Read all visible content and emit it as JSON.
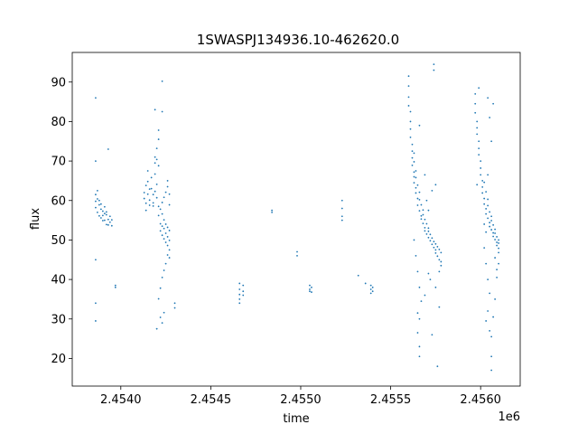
{
  "chart_data": {
    "type": "scatter",
    "title": "1SWASPJ134936.10-462620.0",
    "xlabel": "time",
    "ylabel": "flux",
    "x_offset_label": "1e6",
    "xlim": [
      2.45373,
      2.45622
    ],
    "ylim": [
      13,
      97.5
    ],
    "x_ticks": [
      2.454,
      2.4545,
      2.455,
      2.4555,
      2.456
    ],
    "x_tick_labels": [
      "2.4540",
      "2.4545",
      "2.4550",
      "2.4555",
      "2.4560"
    ],
    "y_ticks": [
      20,
      30,
      40,
      50,
      60,
      70,
      80,
      90
    ],
    "y_tick_labels": [
      "20",
      "30",
      "40",
      "50",
      "60",
      "70",
      "80",
      "90"
    ],
    "grid": false,
    "marker_color": "#1f77b4",
    "points": [
      [
        2.45386,
        61.5
      ],
      [
        2.45386,
        59.8
      ],
      [
        2.45386,
        58.2
      ],
      [
        2.45387,
        57.0
      ],
      [
        2.45387,
        62.5
      ],
      [
        2.45387,
        60.4
      ],
      [
        2.45388,
        58.9
      ],
      [
        2.45388,
        56.1
      ],
      [
        2.45388,
        60.0
      ],
      [
        2.45389,
        57.8
      ],
      [
        2.45389,
        55.6
      ],
      [
        2.45389,
        59.1
      ],
      [
        2.4539,
        57.3
      ],
      [
        2.4539,
        56.2
      ],
      [
        2.4539,
        54.9
      ],
      [
        2.45391,
        58.4
      ],
      [
        2.45391,
        56.7
      ],
      [
        2.45391,
        55.0
      ],
      [
        2.45392,
        57.1
      ],
      [
        2.45392,
        53.9
      ],
      [
        2.45392,
        56.4
      ],
      [
        2.45393,
        55.2
      ],
      [
        2.45393,
        53.8
      ],
      [
        2.45394,
        56.0
      ],
      [
        2.45394,
        54.5
      ],
      [
        2.45395,
        55.1
      ],
      [
        2.45395,
        53.6
      ],
      [
        2.45386,
        70.0
      ],
      [
        2.45386,
        86.0
      ],
      [
        2.45386,
        45.0
      ],
      [
        2.45386,
        34.0
      ],
      [
        2.45386,
        29.5
      ],
      [
        2.45393,
        73.0
      ],
      [
        2.45397,
        38.5
      ],
      [
        2.45397,
        38.0
      ],
      [
        2.45413,
        62.0
      ],
      [
        2.45413,
        60.5
      ],
      [
        2.45414,
        63.8
      ],
      [
        2.45414,
        59.3
      ],
      [
        2.45415,
        64.8
      ],
      [
        2.45415,
        61.6
      ],
      [
        2.45416,
        62.9
      ],
      [
        2.45416,
        60.1
      ],
      [
        2.45417,
        65.8
      ],
      [
        2.45417,
        63.0
      ],
      [
        2.45418,
        61.5
      ],
      [
        2.45418,
        59.4
      ],
      [
        2.45419,
        66.7
      ],
      [
        2.45419,
        62.3
      ],
      [
        2.4542,
        60.7
      ],
      [
        2.4542,
        64.1
      ],
      [
        2.45415,
        67.5
      ],
      [
        2.45414,
        57.5
      ],
      [
        2.45418,
        58.6
      ],
      [
        2.45416,
        58.8
      ],
      [
        2.45419,
        69.5
      ],
      [
        2.45419,
        71.0
      ],
      [
        2.4542,
        73.2
      ],
      [
        2.45421,
        75.5
      ],
      [
        2.45421,
        77.8
      ],
      [
        2.4542,
        70.4
      ],
      [
        2.45421,
        68.8
      ],
      [
        2.45421,
        58.5
      ],
      [
        2.45421,
        56.2
      ],
      [
        2.45422,
        57.8
      ],
      [
        2.45422,
        54.1
      ],
      [
        2.45422,
        52.3
      ],
      [
        2.45423,
        56.6
      ],
      [
        2.45423,
        51.2
      ],
      [
        2.45423,
        53.5
      ],
      [
        2.45424,
        55.1
      ],
      [
        2.45424,
        50.3
      ],
      [
        2.45424,
        52.9
      ],
      [
        2.45425,
        54.0
      ],
      [
        2.45425,
        49.4
      ],
      [
        2.45425,
        51.7
      ],
      [
        2.45426,
        53.2
      ],
      [
        2.45426,
        48.6
      ],
      [
        2.45426,
        50.8
      ],
      [
        2.45427,
        52.4
      ],
      [
        2.45427,
        47.5
      ],
      [
        2.45427,
        49.9
      ],
      [
        2.45423,
        59.5
      ],
      [
        2.45424,
        60.8
      ],
      [
        2.45425,
        62.1
      ],
      [
        2.45426,
        63.5
      ],
      [
        2.45426,
        65.0
      ],
      [
        2.45427,
        61.6
      ],
      [
        2.45427,
        58.9
      ],
      [
        2.45426,
        46.2
      ],
      [
        2.45427,
        45.5
      ],
      [
        2.45425,
        44.0
      ],
      [
        2.45424,
        42.3
      ],
      [
        2.45423,
        40.5
      ],
      [
        2.45422,
        37.8
      ],
      [
        2.45421,
        35.1
      ],
      [
        2.4542,
        27.5
      ],
      [
        2.45422,
        30.4
      ],
      [
        2.45423,
        29.0
      ],
      [
        2.45424,
        31.6
      ],
      [
        2.45423,
        90.2
      ],
      [
        2.45419,
        83.0
      ],
      [
        2.45423,
        82.5
      ],
      [
        2.4543,
        34.0
      ],
      [
        2.4543,
        32.8
      ],
      [
        2.45466,
        39.0
      ],
      [
        2.45466,
        37.5
      ],
      [
        2.45466,
        36.2
      ],
      [
        2.45466,
        35.0
      ],
      [
        2.45466,
        34.0
      ],
      [
        2.45468,
        38.5
      ],
      [
        2.45468,
        37.0
      ],
      [
        2.45468,
        36.0
      ],
      [
        2.45484,
        57.5
      ],
      [
        2.45484,
        57.0
      ],
      [
        2.45498,
        47.0
      ],
      [
        2.45498,
        46.0
      ],
      [
        2.45505,
        38.5
      ],
      [
        2.45505,
        37.5
      ],
      [
        2.45505,
        37.0
      ],
      [
        2.45506,
        38.0
      ],
      [
        2.45506,
        36.8
      ],
      [
        2.45523,
        60.0
      ],
      [
        2.45523,
        58.0
      ],
      [
        2.45523,
        56.0
      ],
      [
        2.45523,
        55.0
      ],
      [
        2.45532,
        41.0
      ],
      [
        2.45536,
        39.0
      ],
      [
        2.45539,
        38.5
      ],
      [
        2.45539,
        37.5
      ],
      [
        2.45539,
        36.5
      ],
      [
        2.4554,
        38.0
      ],
      [
        2.4554,
        37.0
      ],
      [
        2.4556,
        91.5
      ],
      [
        2.4556,
        89.0
      ],
      [
        2.4556,
        86.2
      ],
      [
        2.4556,
        84.0
      ],
      [
        2.45561,
        82.5
      ],
      [
        2.45561,
        80.0
      ],
      [
        2.45561,
        78.1
      ],
      [
        2.45561,
        76.0
      ],
      [
        2.45562,
        74.2
      ],
      [
        2.45562,
        72.5
      ],
      [
        2.45562,
        70.8
      ],
      [
        2.45562,
        68.9
      ],
      [
        2.45563,
        67.2
      ],
      [
        2.45563,
        66.0
      ],
      [
        2.45563,
        64.5
      ],
      [
        2.45563,
        69.8
      ],
      [
        2.45564,
        63.2
      ],
      [
        2.45564,
        65.8
      ],
      [
        2.45564,
        61.9
      ],
      [
        2.45564,
        67.5
      ],
      [
        2.45565,
        60.5
      ],
      [
        2.45565,
        63.9
      ],
      [
        2.45565,
        58.8
      ],
      [
        2.45566,
        62.1
      ],
      [
        2.45566,
        57.4
      ],
      [
        2.45566,
        60.2
      ],
      [
        2.45567,
        56.1
      ],
      [
        2.45567,
        58.9
      ],
      [
        2.45567,
        55.3
      ],
      [
        2.45568,
        57.6
      ],
      [
        2.45568,
        54.2
      ],
      [
        2.45568,
        56.4
      ],
      [
        2.45569,
        53.1
      ],
      [
        2.45569,
        55.2
      ],
      [
        2.45569,
        52.3
      ],
      [
        2.4557,
        54.1
      ],
      [
        2.4557,
        51.5
      ],
      [
        2.45571,
        53.0
      ],
      [
        2.45571,
        50.6
      ],
      [
        2.45571,
        52.2
      ],
      [
        2.45572,
        49.8
      ],
      [
        2.45572,
        51.4
      ],
      [
        2.45573,
        48.9
      ],
      [
        2.45573,
        50.5
      ],
      [
        2.45574,
        48.1
      ],
      [
        2.45574,
        49.6
      ],
      [
        2.45575,
        47.5
      ],
      [
        2.45575,
        49.0
      ],
      [
        2.45575,
        46.7
      ],
      [
        2.45576,
        48.3
      ],
      [
        2.45576,
        45.9
      ],
      [
        2.45577,
        47.6
      ],
      [
        2.45577,
        45.0
      ],
      [
        2.45578,
        46.8
      ],
      [
        2.45578,
        44.5
      ],
      [
        2.45571,
        57.5
      ],
      [
        2.4557,
        60.0
      ],
      [
        2.45573,
        62.5
      ],
      [
        2.45575,
        64.0
      ],
      [
        2.45569,
        66.5
      ],
      [
        2.45563,
        50.0
      ],
      [
        2.45564,
        46.0
      ],
      [
        2.45565,
        42.0
      ],
      [
        2.45566,
        38.0
      ],
      [
        2.45567,
        34.5
      ],
      [
        2.45566,
        30.0
      ],
      [
        2.45565,
        26.5
      ],
      [
        2.45566,
        23.0
      ],
      [
        2.45566,
        20.5
      ],
      [
        2.45565,
        31.5
      ],
      [
        2.45569,
        36.0
      ],
      [
        2.45572,
        40.0
      ],
      [
        2.45575,
        38.0
      ],
      [
        2.45577,
        33.0
      ],
      [
        2.45576,
        18.0
      ],
      [
        2.45573,
        26.0
      ],
      [
        2.45574,
        94.5
      ],
      [
        2.45574,
        93.0
      ],
      [
        2.45566,
        79.0
      ],
      [
        2.45563,
        72.0
      ],
      [
        2.45571,
        41.5
      ],
      [
        2.45577,
        42.0
      ],
      [
        2.45578,
        43.5
      ],
      [
        2.45597,
        87.0
      ],
      [
        2.45597,
        84.5
      ],
      [
        2.45597,
        82.2
      ],
      [
        2.45598,
        80.0
      ],
      [
        2.45598,
        78.4
      ],
      [
        2.45598,
        76.8
      ],
      [
        2.45599,
        75.0
      ],
      [
        2.45599,
        73.2
      ],
      [
        2.45599,
        71.6
      ],
      [
        2.456,
        70.0
      ],
      [
        2.456,
        68.2
      ],
      [
        2.456,
        66.5
      ],
      [
        2.45601,
        65.0
      ],
      [
        2.45601,
        63.4
      ],
      [
        2.45601,
        61.9
      ],
      [
        2.45602,
        60.5
      ],
      [
        2.45602,
        59.1
      ],
      [
        2.45602,
        64.6
      ],
      [
        2.45603,
        57.9
      ],
      [
        2.45603,
        62.2
      ],
      [
        2.45603,
        56.6
      ],
      [
        2.45604,
        60.3
      ],
      [
        2.45604,
        55.5
      ],
      [
        2.45604,
        58.7
      ],
      [
        2.45605,
        54.4
      ],
      [
        2.45605,
        57.1
      ],
      [
        2.45605,
        53.4
      ],
      [
        2.45606,
        56.0
      ],
      [
        2.45606,
        52.6
      ],
      [
        2.45606,
        54.9
      ],
      [
        2.45607,
        51.8
      ],
      [
        2.45607,
        53.8
      ],
      [
        2.45607,
        50.9
      ],
      [
        2.45608,
        52.7
      ],
      [
        2.45608,
        50.1
      ],
      [
        2.45608,
        51.7
      ],
      [
        2.45609,
        49.4
      ],
      [
        2.45609,
        50.8
      ],
      [
        2.45609,
        48.6
      ],
      [
        2.4561,
        50.0
      ],
      [
        2.4561,
        47.9
      ],
      [
        2.4561,
        49.2
      ],
      [
        2.4561,
        46.8
      ],
      [
        2.45604,
        66.5
      ],
      [
        2.45606,
        75.0
      ],
      [
        2.45603,
        52.0
      ],
      [
        2.45602,
        48.0
      ],
      [
        2.45603,
        44.0
      ],
      [
        2.45604,
        40.0
      ],
      [
        2.45605,
        36.5
      ],
      [
        2.45604,
        32.0
      ],
      [
        2.45603,
        29.5
      ],
      [
        2.45605,
        27.0
      ],
      [
        2.45606,
        25.5
      ],
      [
        2.45606,
        20.5
      ],
      [
        2.45607,
        30.5
      ],
      [
        2.45608,
        35.0
      ],
      [
        2.45609,
        40.5
      ],
      [
        2.4561,
        44.0
      ],
      [
        2.45606,
        17.0
      ],
      [
        2.45605,
        81.0
      ],
      [
        2.45607,
        84.5
      ],
      [
        2.45604,
        86.0
      ],
      [
        2.45599,
        88.5
      ],
      [
        2.45608,
        45.5
      ],
      [
        2.45609,
        42.5
      ],
      [
        2.45602,
        54.0
      ],
      [
        2.45598,
        64.0
      ]
    ]
  }
}
